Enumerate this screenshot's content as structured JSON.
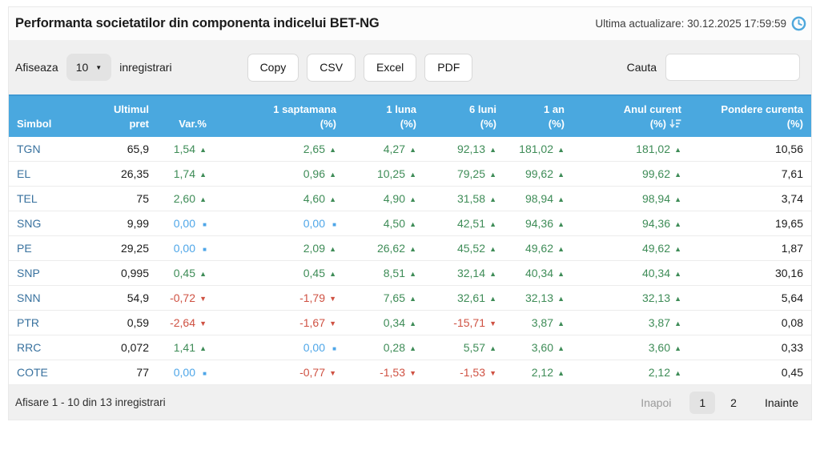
{
  "panel": {
    "title": "Performanta societatilor din componenta indicelui BET-NG",
    "last_update": "Ultima actualizare: 30.12.2025 17:59:59"
  },
  "toolbar": {
    "length_label_before": "Afiseaza",
    "length_value": "10",
    "length_label_after": "inregistrari",
    "export_buttons": [
      "Copy",
      "CSV",
      "Excel",
      "PDF"
    ],
    "search_label": "Cauta",
    "search_value": ""
  },
  "table": {
    "columns": [
      {
        "line1": "",
        "line2": "Simbol",
        "align": "left"
      },
      {
        "line1": "Ultimul",
        "line2": "pret",
        "align": "right"
      },
      {
        "line1": "",
        "line2": "Var.%",
        "align": "right"
      },
      {
        "line1": "1 saptamana",
        "line2": "(%)",
        "align": "right"
      },
      {
        "line1": "1 luna",
        "line2": "(%)",
        "align": "right"
      },
      {
        "line1": "6 luni",
        "line2": "(%)",
        "align": "right"
      },
      {
        "line1": "1 an",
        "line2": "(%)",
        "align": "right"
      },
      {
        "line1": "Anul curent",
        "line2": "(%)",
        "align": "right",
        "sort_icon": "sort-descending"
      },
      {
        "line1": "Pondere curenta",
        "line2": "(%)",
        "align": "right"
      }
    ],
    "rows": [
      {
        "symbol": "TGN",
        "price": "65,9",
        "changes": [
          {
            "v": "1,54",
            "d": "up"
          },
          {
            "v": "2,65",
            "d": "up"
          },
          {
            "v": "4,27",
            "d": "up"
          },
          {
            "v": "92,13",
            "d": "up"
          },
          {
            "v": "181,02",
            "d": "up"
          },
          {
            "v": "181,02",
            "d": "up"
          }
        ],
        "weight": "10,56"
      },
      {
        "symbol": "EL",
        "price": "26,35",
        "changes": [
          {
            "v": "1,74",
            "d": "up"
          },
          {
            "v": "0,96",
            "d": "up"
          },
          {
            "v": "10,25",
            "d": "up"
          },
          {
            "v": "79,25",
            "d": "up"
          },
          {
            "v": "99,62",
            "d": "up"
          },
          {
            "v": "99,62",
            "d": "up"
          }
        ],
        "weight": "7,61"
      },
      {
        "symbol": "TEL",
        "price": "75",
        "changes": [
          {
            "v": "2,60",
            "d": "up"
          },
          {
            "v": "4,60",
            "d": "up"
          },
          {
            "v": "4,90",
            "d": "up"
          },
          {
            "v": "31,58",
            "d": "up"
          },
          {
            "v": "98,94",
            "d": "up"
          },
          {
            "v": "98,94",
            "d": "up"
          }
        ],
        "weight": "3,74"
      },
      {
        "symbol": "SNG",
        "price": "9,99",
        "changes": [
          {
            "v": "0,00",
            "d": "flat"
          },
          {
            "v": "0,00",
            "d": "flat"
          },
          {
            "v": "4,50",
            "d": "up"
          },
          {
            "v": "42,51",
            "d": "up"
          },
          {
            "v": "94,36",
            "d": "up"
          },
          {
            "v": "94,36",
            "d": "up"
          }
        ],
        "weight": "19,65"
      },
      {
        "symbol": "PE",
        "price": "29,25",
        "changes": [
          {
            "v": "0,00",
            "d": "flat"
          },
          {
            "v": "2,09",
            "d": "up"
          },
          {
            "v": "26,62",
            "d": "up"
          },
          {
            "v": "45,52",
            "d": "up"
          },
          {
            "v": "49,62",
            "d": "up"
          },
          {
            "v": "49,62",
            "d": "up"
          }
        ],
        "weight": "1,87"
      },
      {
        "symbol": "SNP",
        "price": "0,995",
        "changes": [
          {
            "v": "0,45",
            "d": "up"
          },
          {
            "v": "0,45",
            "d": "up"
          },
          {
            "v": "8,51",
            "d": "up"
          },
          {
            "v": "32,14",
            "d": "up"
          },
          {
            "v": "40,34",
            "d": "up"
          },
          {
            "v": "40,34",
            "d": "up"
          }
        ],
        "weight": "30,16"
      },
      {
        "symbol": "SNN",
        "price": "54,9",
        "changes": [
          {
            "v": "-0,72",
            "d": "down"
          },
          {
            "v": "-1,79",
            "d": "down"
          },
          {
            "v": "7,65",
            "d": "up"
          },
          {
            "v": "32,61",
            "d": "up"
          },
          {
            "v": "32,13",
            "d": "up"
          },
          {
            "v": "32,13",
            "d": "up"
          }
        ],
        "weight": "5,64"
      },
      {
        "symbol": "PTR",
        "price": "0,59",
        "changes": [
          {
            "v": "-2,64",
            "d": "down"
          },
          {
            "v": "-1,67",
            "d": "down"
          },
          {
            "v": "0,34",
            "d": "up"
          },
          {
            "v": "-15,71",
            "d": "down"
          },
          {
            "v": "3,87",
            "d": "up"
          },
          {
            "v": "3,87",
            "d": "up"
          }
        ],
        "weight": "0,08"
      },
      {
        "symbol": "RRC",
        "price": "0,072",
        "changes": [
          {
            "v": "1,41",
            "d": "up"
          },
          {
            "v": "0,00",
            "d": "flat"
          },
          {
            "v": "0,28",
            "d": "up"
          },
          {
            "v": "5,57",
            "d": "up"
          },
          {
            "v": "3,60",
            "d": "up"
          },
          {
            "v": "3,60",
            "d": "up"
          }
        ],
        "weight": "0,33"
      },
      {
        "symbol": "COTE",
        "price": "77",
        "changes": [
          {
            "v": "0,00",
            "d": "flat"
          },
          {
            "v": "-0,77",
            "d": "down"
          },
          {
            "v": "-1,53",
            "d": "down"
          },
          {
            "v": "-1,53",
            "d": "down"
          },
          {
            "v": "2,12",
            "d": "up"
          },
          {
            "v": "2,12",
            "d": "up"
          }
        ],
        "weight": "0,45"
      }
    ]
  },
  "footer": {
    "info": "Afisare 1 - 10 din 13 inregistrari",
    "prev_label": "Inapoi",
    "pages": [
      "1",
      "2"
    ],
    "current_page": "1",
    "next_label": "Inainte"
  },
  "colors": {
    "header_bg": "#4AA8DF",
    "header_bg_dark": "#3E99D4",
    "positive": "#3E8C57",
    "negative": "#CF5142",
    "neutral": "#4EA6E8",
    "symbol": "#38719E"
  }
}
